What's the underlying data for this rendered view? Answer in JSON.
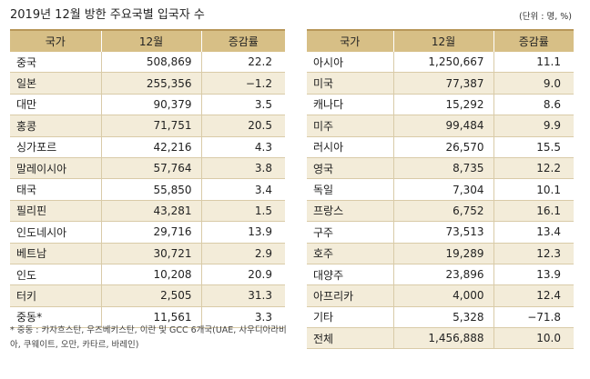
{
  "title": "2019년 12월 방한 주요국별 입국자 수",
  "unit": "(단위 : 명, %)",
  "columns": {
    "country": "국가",
    "month": "12월",
    "rate": "증감률"
  },
  "left_rows": [
    {
      "country": "중국",
      "value": "508,869",
      "rate": "22.2"
    },
    {
      "country": "일본",
      "value": "255,356",
      "rate": "−1.2"
    },
    {
      "country": "대만",
      "value": "90,379",
      "rate": "3.5"
    },
    {
      "country": "홍콩",
      "value": "71,751",
      "rate": "20.5"
    },
    {
      "country": "싱가포르",
      "value": "42,216",
      "rate": "4.3"
    },
    {
      "country": "말레이시아",
      "value": "57,764",
      "rate": "3.8"
    },
    {
      "country": "태국",
      "value": "55,850",
      "rate": "3.4"
    },
    {
      "country": "필리핀",
      "value": "43,281",
      "rate": "1.5"
    },
    {
      "country": "인도네시아",
      "value": "29,716",
      "rate": "13.9"
    },
    {
      "country": "베트남",
      "value": "30,721",
      "rate": "2.9"
    },
    {
      "country": "인도",
      "value": "10,208",
      "rate": "20.9"
    },
    {
      "country": "터키",
      "value": "2,505",
      "rate": "31.3"
    },
    {
      "country": "중동*",
      "value": "11,561",
      "rate": "3.3"
    }
  ],
  "right_rows": [
    {
      "country": "아시아",
      "value": "1,250,667",
      "rate": "11.1"
    },
    {
      "country": "미국",
      "value": "77,387",
      "rate": "9.0"
    },
    {
      "country": "캐나다",
      "value": "15,292",
      "rate": "8.6"
    },
    {
      "country": "미주",
      "value": "99,484",
      "rate": "9.9"
    },
    {
      "country": "러시아",
      "value": "26,570",
      "rate": "15.5"
    },
    {
      "country": "영국",
      "value": "8,735",
      "rate": "12.2"
    },
    {
      "country": "독일",
      "value": "7,304",
      "rate": "10.1"
    },
    {
      "country": "프랑스",
      "value": "6,752",
      "rate": "16.1"
    },
    {
      "country": "구주",
      "value": "73,513",
      "rate": "13.4"
    },
    {
      "country": "호주",
      "value": "19,289",
      "rate": "12.3"
    },
    {
      "country": "대양주",
      "value": "23,896",
      "rate": "13.9"
    },
    {
      "country": "아프리카",
      "value": "4,000",
      "rate": "12.4"
    },
    {
      "country": "기타",
      "value": "5,328",
      "rate": "−71.8"
    },
    {
      "country": "전체",
      "value": "1,456,888",
      "rate": "10.0"
    }
  ],
  "footnote": "* 중동 : 카자흐스탄, 우즈베키스탄, 이란 및 GCC 6개국(UAE, 사우디아라비아, 쿠웨이트, 오만, 카타르, 바레인)"
}
